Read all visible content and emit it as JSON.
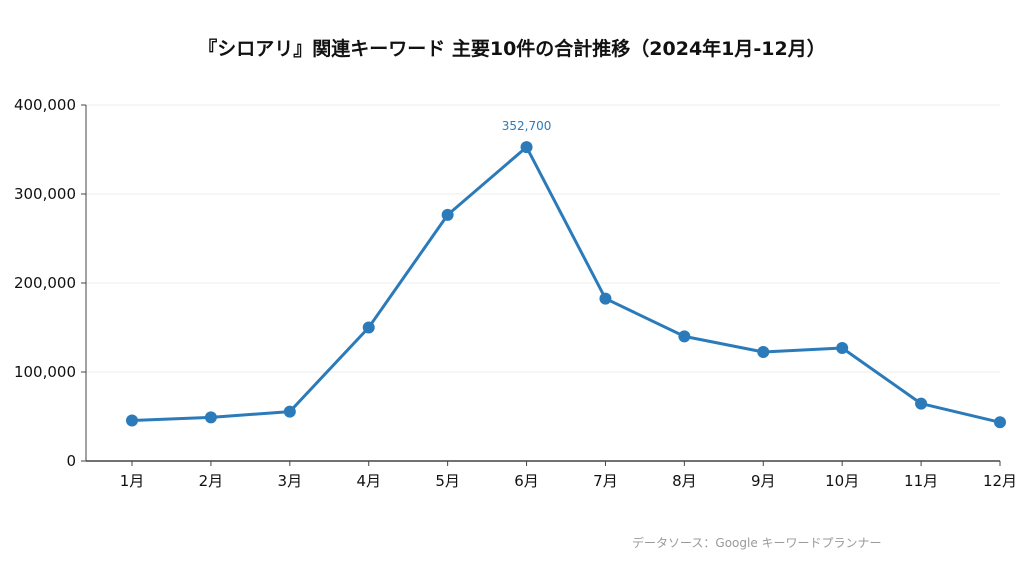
{
  "chart_data": {
    "type": "line",
    "title": "『シロアリ』関連キーワード 主要10件の合計推移（2024年1月-12月）",
    "xlabel": "",
    "ylabel": "",
    "categories": [
      "1月",
      "2月",
      "3月",
      "4月",
      "5月",
      "6月",
      "7月",
      "8月",
      "9月",
      "10月",
      "11月",
      "12月"
    ],
    "series": [
      {
        "values": [
          45500,
          49000,
          55500,
          150000,
          276500,
          352700,
          182500,
          140000,
          122500,
          127000,
          64500,
          43500
        ]
      }
    ],
    "ylim": [
      0,
      400000
    ],
    "yticks": [
      "0",
      "100,000",
      "200,000",
      "300,000",
      "400,000"
    ],
    "data_labels": [
      {
        "index": 5,
        "text": "352,700"
      }
    ],
    "grid": true,
    "legend": "none",
    "line_color": "#2b7bba",
    "label_color": "#2b7bba"
  },
  "source_note": "データソース：Google キーワードプランナー"
}
